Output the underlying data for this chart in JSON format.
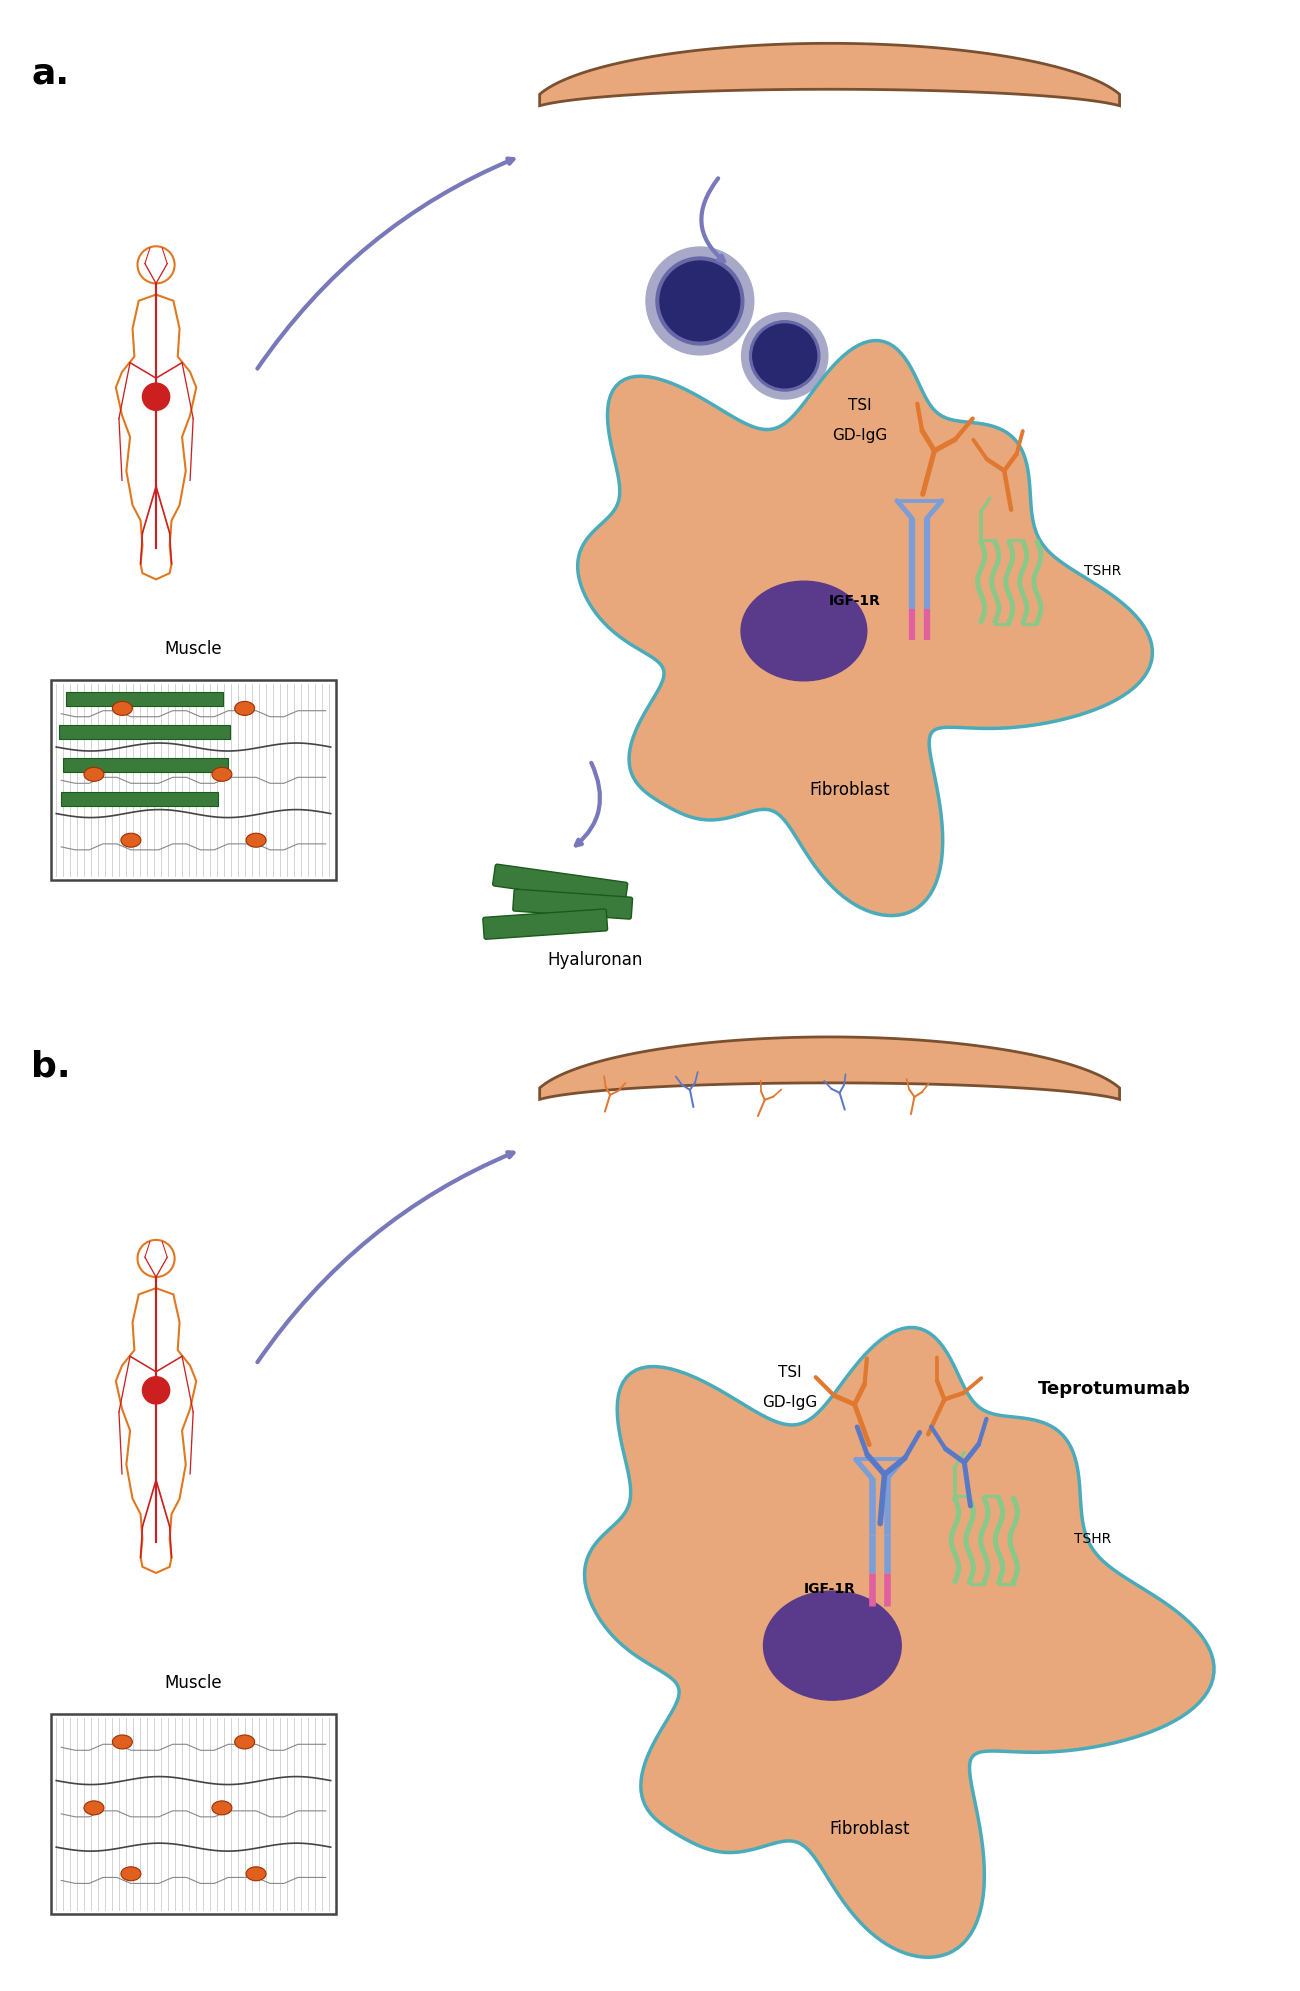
{
  "bg_color": "#ffffff",
  "panel_a_label": "a.",
  "panel_b_label": "b.",
  "vessel_color": "#E8A87C",
  "vessel_edge": "#7A5030",
  "cell_color": "#E8A87C",
  "cell_edge_color": "#4AACBA",
  "nucleus_color": "#5A3A8A",
  "igf1r_color": "#7B9ED9",
  "tshr_color": "#88C888",
  "pink_color": "#E060A0",
  "igf1r_label": "IGF-1R",
  "tshr_label": "TSHR",
  "fibroblast_label": "Fibroblast",
  "hyaluronan_label": "Hyaluronan",
  "muscle_label": "Muscle",
  "tsi_label": "TSI",
  "gd_igg_label": "GD-IgG",
  "teprotumumab_label": "Teprotumumab",
  "ab_orange": "#E07830",
  "ab_blue": "#5878C8",
  "b_cell_dark": "#282870",
  "b_cell_mid": "#6868A8",
  "b_cell_light": "#A8A8C8",
  "green_bar": "#3A7A3A",
  "green_bar_edge": "#1A5A1A",
  "orange_oval": "#E06020",
  "orange_oval_edge": "#A03000",
  "body_red": "#CC2020",
  "body_orange": "#E07820",
  "arrow_color": "#7878BB",
  "muscle_line": "#888888",
  "muscle_border": "#444444"
}
